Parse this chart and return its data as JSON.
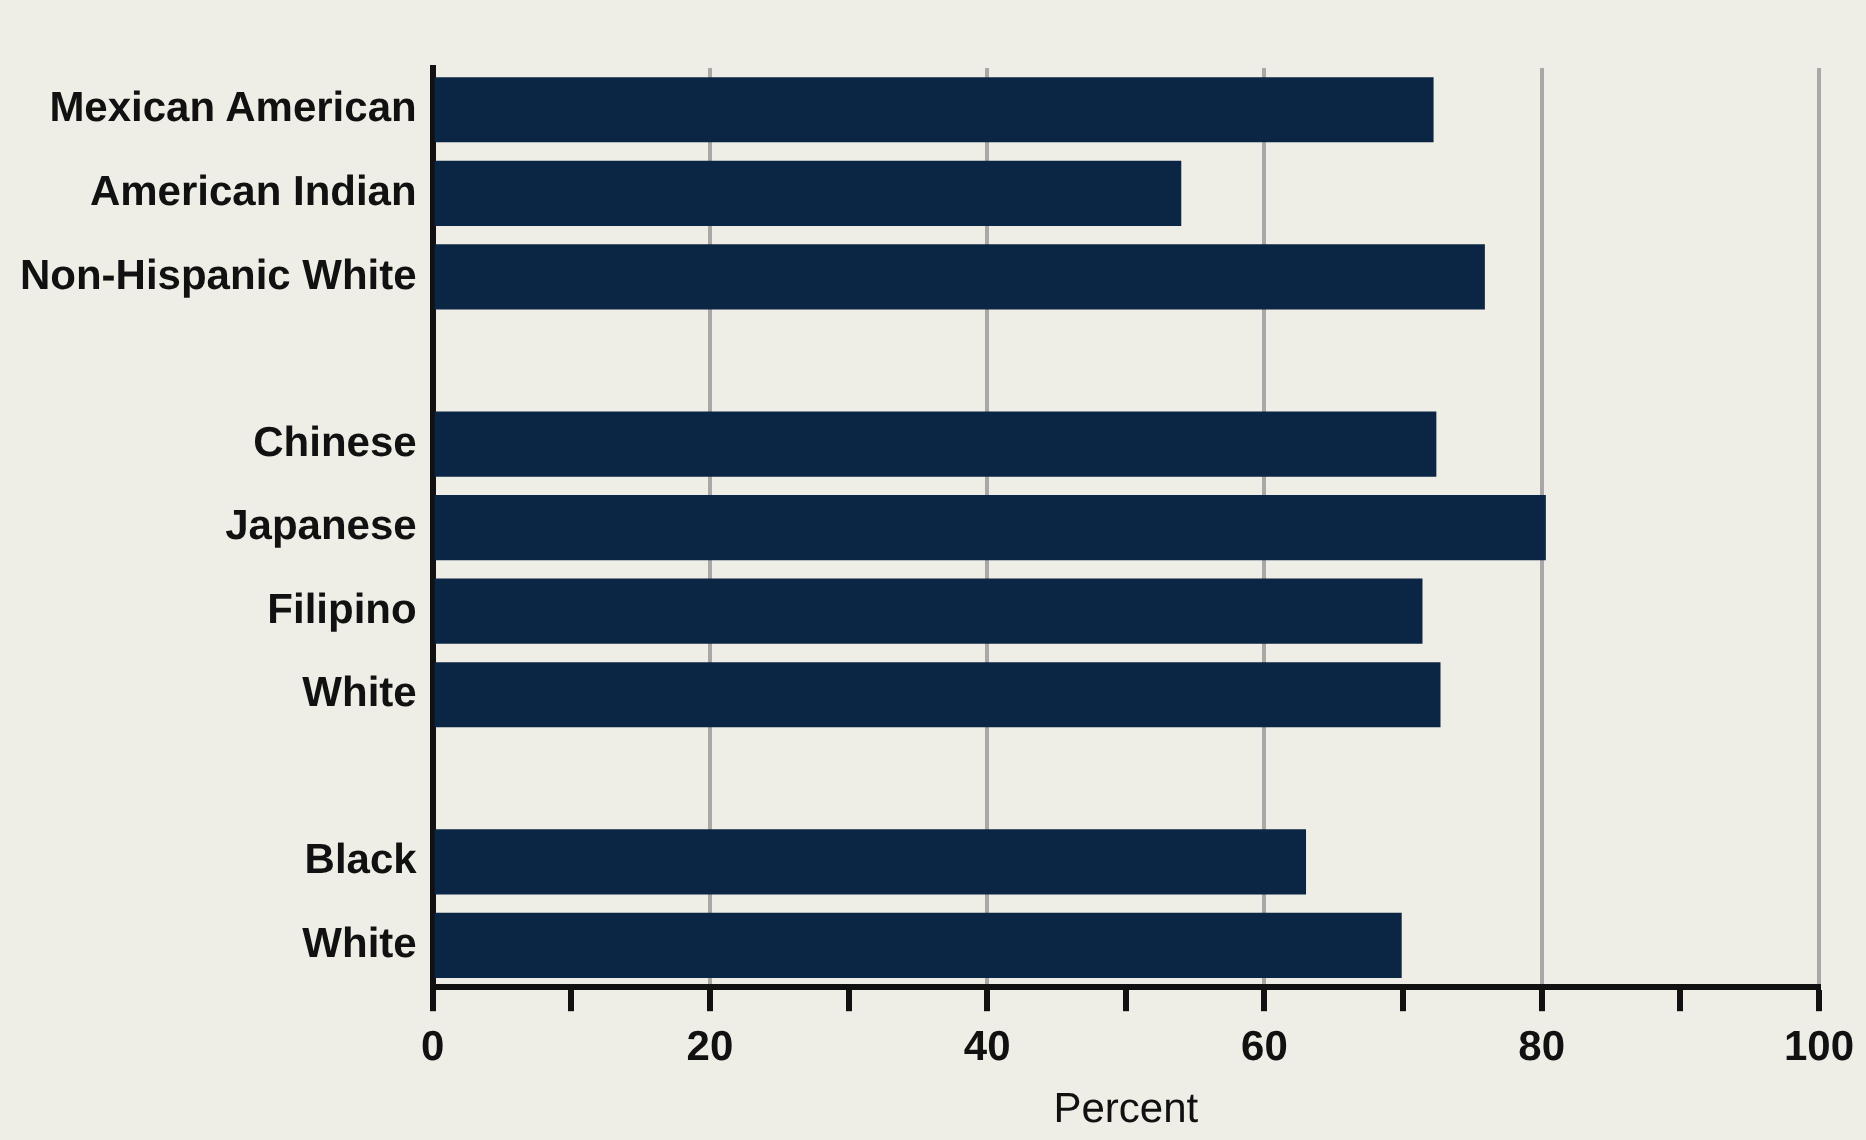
{
  "chart_data": {
    "type": "bar",
    "orientation": "horizontal",
    "xlabel": "Percent",
    "categories": [
      "Mexican American",
      "American Indian",
      "Non-Hispanic White",
      null,
      "Chinese",
      "Japanese",
      "Filipino",
      "White",
      null,
      "Black",
      "White"
    ],
    "values": [
      72.2,
      54.0,
      75.9,
      null,
      72.4,
      80.3,
      71.4,
      72.7,
      null,
      63.0,
      69.9
    ],
    "color": "#0b2545",
    "xlim": [
      0,
      100
    ],
    "xticks": [
      0,
      {
        "value": 10,
        "label": null
      },
      20,
      {
        "value": 30,
        "label": null
      },
      40,
      {
        "value": 50,
        "label": null
      },
      60,
      {
        "value": 70,
        "label": null
      },
      80,
      {
        "value": 90,
        "label": null
      },
      100
    ],
    "grid": "x",
    "legend": false
  }
}
